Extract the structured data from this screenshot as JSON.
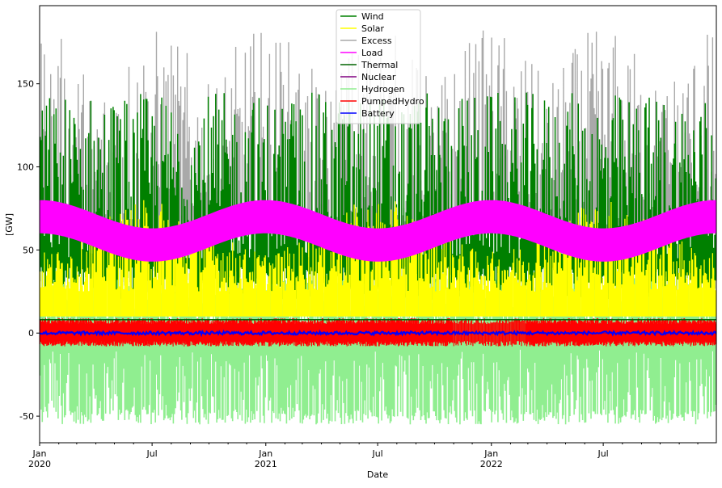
{
  "chart_data": {
    "type": "line",
    "xlabel": "Date",
    "ylabel": "[GW]",
    "ylim": [
      -66,
      197
    ],
    "xlim": [
      "2020-01-01",
      "2022-12-31"
    ],
    "y_ticks": [
      -50,
      0,
      50,
      100,
      150
    ],
    "x_major_ticks": [
      {
        "date": "2020-01-01",
        "label": "Jan",
        "sublabel": "2020"
      },
      {
        "date": "2020-07-01",
        "label": "Jul",
        "sublabel": ""
      },
      {
        "date": "2021-01-01",
        "label": "Jan",
        "sublabel": "2021"
      },
      {
        "date": "2021-07-01",
        "label": "Jul",
        "sublabel": ""
      },
      {
        "date": "2022-01-01",
        "label": "Jan",
        "sublabel": "2022"
      },
      {
        "date": "2022-07-01",
        "label": "Jul",
        "sublabel": ""
      }
    ],
    "grid": false,
    "legend_position": "top-center",
    "series": [
      {
        "name": "Wind",
        "color": "#008000",
        "band_low": 20,
        "band_high": 145,
        "note_values": "hourly generation, peaks ~160"
      },
      {
        "name": "Solar",
        "color": "#ffff00",
        "band_low": 10,
        "band_high": 75
      },
      {
        "name": "Excess",
        "color": "#a9a9a9",
        "band_low": 60,
        "band_high": 185
      },
      {
        "name": "Load",
        "color": "#ff00ff",
        "band_low_range": [
          43,
          60
        ],
        "band_high_range": [
          63,
          80
        ]
      },
      {
        "name": "Thermal",
        "color": "#006400",
        "level": 8
      },
      {
        "name": "Nuclear",
        "color": "#800080",
        "level": 0
      },
      {
        "name": "Hydrogen",
        "color": "#90ee90",
        "band_low": -55,
        "band_high": 35
      },
      {
        "name": "PumpedHydro",
        "color": "#ff0000",
        "band_low": -8,
        "band_high": 9
      },
      {
        "name": "Battery",
        "color": "#0000ff",
        "band_low": -1,
        "band_high": 1
      }
    ]
  }
}
